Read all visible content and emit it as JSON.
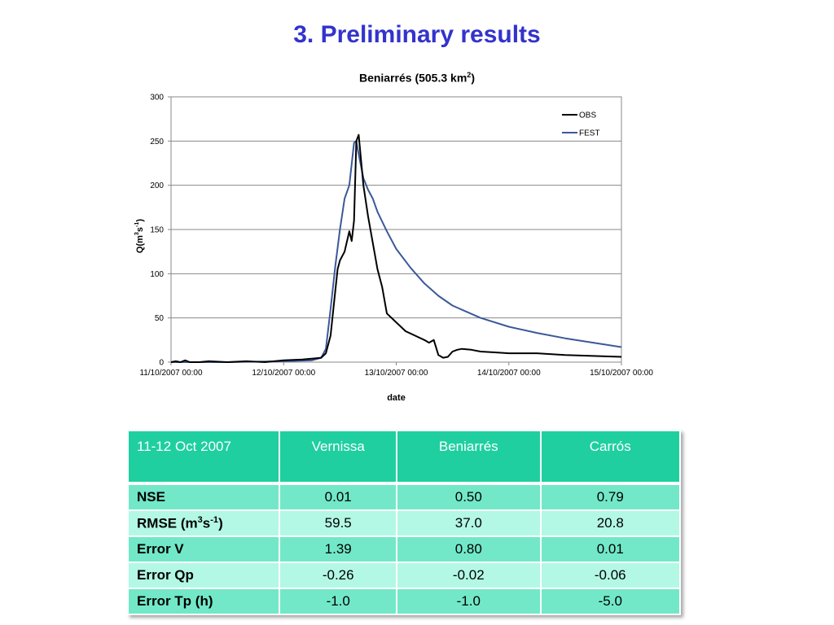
{
  "slide": {
    "title": "3. Preliminary results"
  },
  "chart_data": {
    "type": "line",
    "title": "Beniarrés (505.3 km",
    "title_sup": "2",
    "title_end": ")",
    "xlabel": "date",
    "ylabel": "Q(m",
    "ylabel_sup1": "3",
    "ylabel_mid": "s",
    "ylabel_sup2": "-1",
    "ylabel_end": ")",
    "ylim": [
      0,
      300
    ],
    "yticks": [
      "0",
      "50",
      "100",
      "150",
      "200",
      "250",
      "300"
    ],
    "xlim": [
      "11/10/2007 00:00",
      "15/10/2007 00:00"
    ],
    "xticks": [
      "11/10/2007 00:00",
      "12/10/2007 00:00",
      "13/10/2007 00:00",
      "14/10/2007 00:00",
      "15/10/2007 00:00"
    ],
    "grid": "horizontal",
    "legend": "top-right",
    "colors": {
      "OBS": "#000000",
      "FEST": "#3b5998"
    },
    "series": [
      {
        "name": "OBS",
        "x": [
          "11/10/2007 00:00",
          "11/10/2007 01:00",
          "11/10/2007 02:00",
          "11/10/2007 03:00",
          "11/10/2007 04:00",
          "11/10/2007 06:00",
          "11/10/2007 08:00",
          "11/10/2007 12:00",
          "11/10/2007 16:00",
          "11/10/2007 20:00",
          "12/10/2007 00:00",
          "12/10/2007 04:00",
          "12/10/2007 06:00",
          "12/10/2007 08:00",
          "12/10/2007 09:00",
          "12/10/2007 10:00",
          "12/10/2007 11:00",
          "12/10/2007 11:30",
          "12/10/2007 12:00",
          "12/10/2007 13:00",
          "12/10/2007 14:00",
          "12/10/2007 14:30",
          "12/10/2007 15:00",
          "12/10/2007 15:30",
          "12/10/2007 16:00",
          "12/10/2007 17:00",
          "12/10/2007 18:00",
          "12/10/2007 19:00",
          "12/10/2007 19:30",
          "12/10/2007 20:00",
          "12/10/2007 21:00",
          "12/10/2007 22:00",
          "13/10/2007 00:00",
          "13/10/2007 02:00",
          "13/10/2007 04:00",
          "13/10/2007 06:00",
          "13/10/2007 07:00",
          "13/10/2007 08:00",
          "13/10/2007 09:00",
          "13/10/2007 10:00",
          "13/10/2007 11:00",
          "13/10/2007 12:00",
          "13/10/2007 13:00",
          "13/10/2007 14:00",
          "13/10/2007 16:00",
          "13/10/2007 18:00",
          "13/10/2007 21:00",
          "14/10/2007 00:00",
          "14/10/2007 06:00",
          "14/10/2007 12:00",
          "14/10/2007 18:00",
          "15/10/2007 00:00"
        ],
        "values": [
          0,
          1,
          0,
          2,
          0,
          0,
          1,
          0,
          1,
          0,
          2,
          3,
          4,
          5,
          10,
          30,
          80,
          105,
          115,
          125,
          148,
          137,
          160,
          250,
          257,
          200,
          165,
          135,
          120,
          105,
          85,
          55,
          45,
          35,
          30,
          25,
          22,
          25,
          8,
          5,
          6,
          12,
          14,
          15,
          14,
          12,
          11,
          10,
          10,
          8,
          7,
          6
        ]
      },
      {
        "name": "FEST",
        "x": [
          "11/10/2007 00:00",
          "11/10/2007 12:00",
          "12/10/2007 00:00",
          "12/10/2007 06:00",
          "12/10/2007 08:00",
          "12/10/2007 09:00",
          "12/10/2007 10:00",
          "12/10/2007 11:00",
          "12/10/2007 12:00",
          "12/10/2007 13:00",
          "12/10/2007 14:00",
          "12/10/2007 15:00",
          "12/10/2007 15:30",
          "12/10/2007 16:00",
          "12/10/2007 17:00",
          "12/10/2007 18:00",
          "12/10/2007 19:00",
          "12/10/2007 20:00",
          "12/10/2007 22:00",
          "13/10/2007 00:00",
          "13/10/2007 03:00",
          "13/10/2007 06:00",
          "13/10/2007 09:00",
          "13/10/2007 12:00",
          "13/10/2007 18:00",
          "14/10/2007 00:00",
          "14/10/2007 06:00",
          "14/10/2007 12:00",
          "14/10/2007 18:00",
          "15/10/2007 00:00"
        ],
        "values": [
          0,
          0,
          1,
          2,
          5,
          15,
          60,
          108,
          150,
          185,
          200,
          248,
          250,
          235,
          208,
          195,
          185,
          170,
          148,
          128,
          107,
          89,
          75,
          64,
          50,
          40,
          33,
          27,
          22,
          17
        ]
      }
    ]
  },
  "table": {
    "header": [
      "11-12 Oct 2007",
      "Vernissa",
      "Beniarrés",
      "Carrós"
    ],
    "rows": [
      {
        "label": "NSE",
        "values": [
          "0.01",
          "0.50",
          "0.79"
        ]
      },
      {
        "label": "RMSE (m",
        "sup1": "3",
        "mid": "s",
        "sup2": "-1",
        "end": ")",
        "values": [
          "59.5",
          "37.0",
          "20.8"
        ]
      },
      {
        "label": "Error V",
        "values": [
          "1.39",
          "0.80",
          "0.01"
        ]
      },
      {
        "label": "Error Qp",
        "values": [
          "-0.26",
          "-0.02",
          "-0.06"
        ]
      },
      {
        "label": "Error Tp (h)",
        "values": [
          "-1.0",
          "-1.0",
          "-5.0"
        ]
      }
    ]
  }
}
